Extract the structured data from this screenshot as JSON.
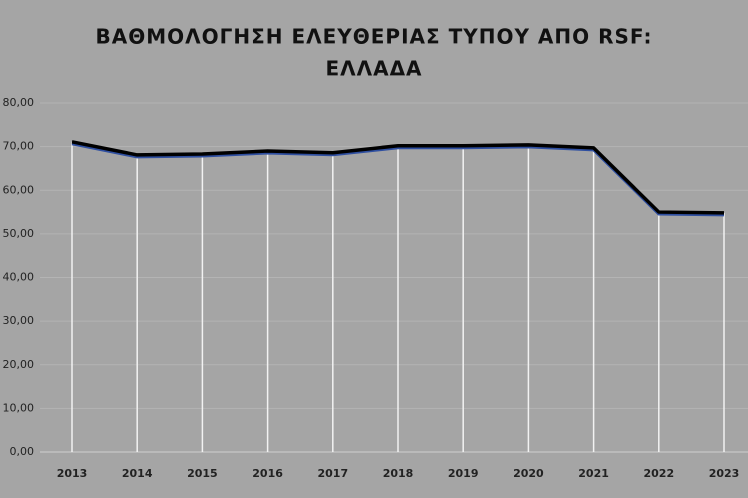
{
  "chart_data": {
    "type": "line",
    "title": [
      "ΒΑΘΜΟΛΟΓΗΣΗ ΕΛΕΥΘΕΡΙΑΣ ΤΥΠΟΥ ΑΠΟ RSF:",
      "ΕΛΛΑΔΑ"
    ],
    "categories": [
      "2013",
      "2014",
      "2015",
      "2016",
      "2017",
      "2018",
      "2019",
      "2020",
      "2021",
      "2022",
      "2023"
    ],
    "values": [
      71.1,
      68.1,
      68.3,
      69.0,
      68.6,
      70.2,
      70.2,
      70.4,
      69.7,
      55.0,
      54.8
    ],
    "color": "#000000",
    "ylim": [
      0,
      80
    ],
    "yticks": [
      {
        "value": 0,
        "label": "0,00"
      },
      {
        "value": 10,
        "label": "10,00"
      },
      {
        "value": 20,
        "label": "20,00"
      },
      {
        "value": 30,
        "label": "30,00"
      },
      {
        "value": 40,
        "label": "40,00"
      },
      {
        "value": 50,
        "label": "50,00"
      },
      {
        "value": 60,
        "label": "60,00"
      },
      {
        "value": 70,
        "label": "70,00"
      },
      {
        "value": 80,
        "label": "80,00"
      }
    ],
    "grid": true,
    "drop_lines": true
  }
}
